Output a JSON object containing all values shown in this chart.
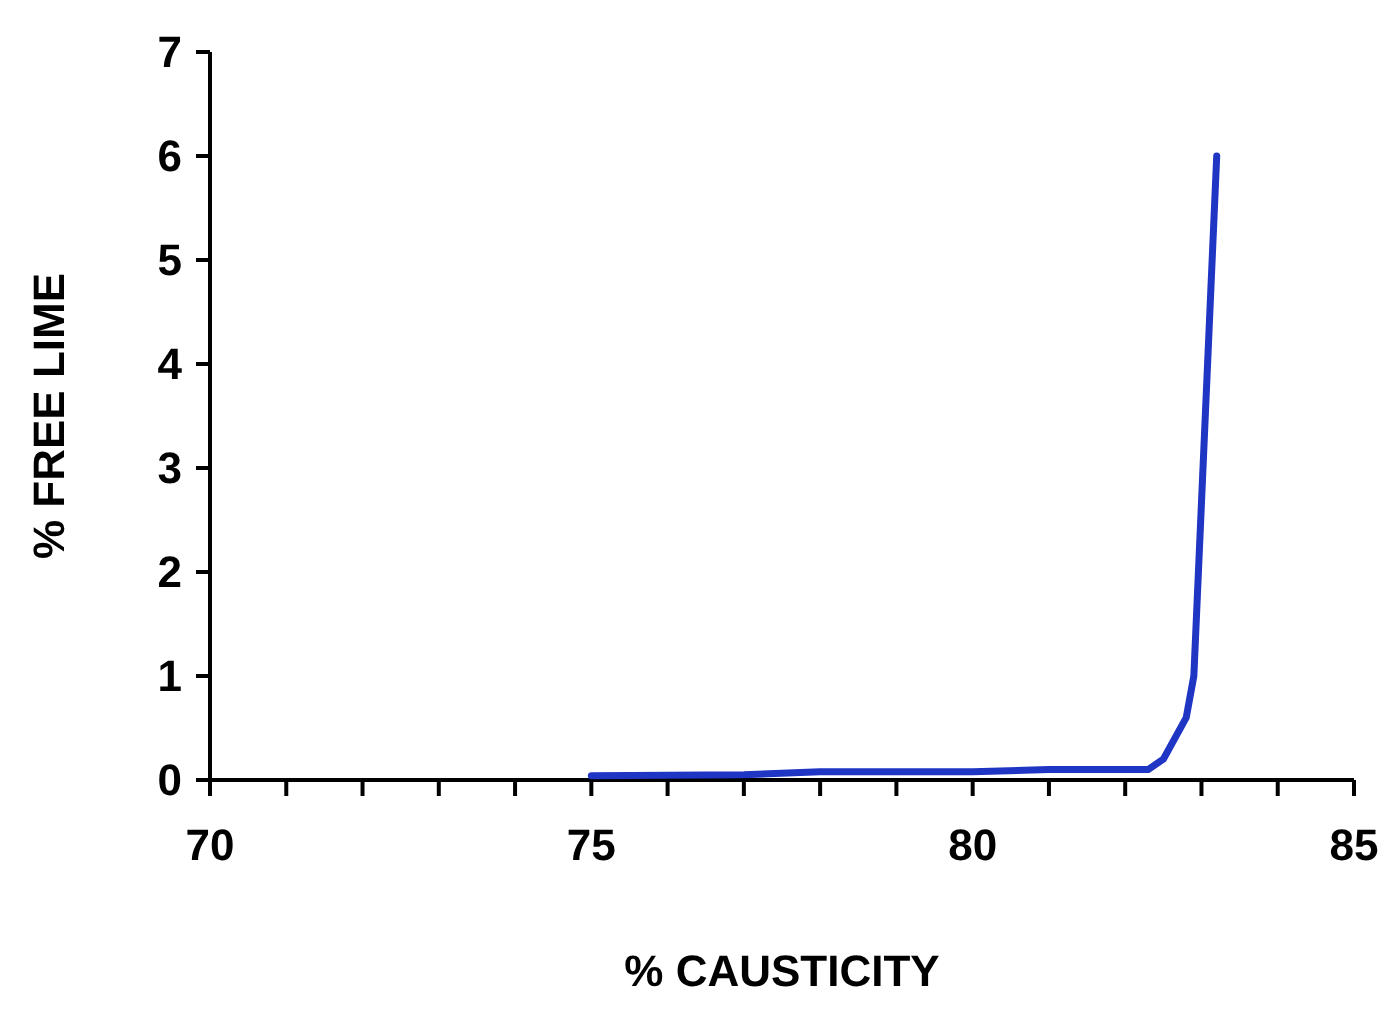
{
  "chart_data": {
    "type": "line",
    "xlabel": "% CAUSTICITY",
    "ylabel": "% FREE LIME",
    "x": [
      75,
      77,
      78,
      80,
      81,
      82.3,
      82.5,
      82.8,
      82.9,
      83.2
    ],
    "series": [
      {
        "color": "#1f35c4",
        "values": [
          0.04,
          0.05,
          0.08,
          0.08,
          0.1,
          0.1,
          0.2,
          0.6,
          1,
          6
        ]
      }
    ],
    "xlim": [
      70,
      85
    ],
    "xticks": [
      70,
      {
        "value": 71,
        "label": null
      },
      {
        "value": 72,
        "label": null
      },
      {
        "value": 73,
        "label": null
      },
      {
        "value": 74,
        "label": null
      },
      75,
      {
        "value": 76,
        "label": null
      },
      {
        "value": 77,
        "label": null
      },
      {
        "value": 78,
        "label": null
      },
      {
        "value": 79,
        "label": null
      },
      80,
      {
        "value": 81,
        "label": null
      },
      {
        "value": 82,
        "label": null
      },
      {
        "value": 83,
        "label": null
      },
      {
        "value": 84,
        "label": null
      },
      85
    ],
    "ylim": [
      0,
      7
    ],
    "yticks": [
      0,
      1,
      2,
      3,
      4,
      5,
      6,
      7
    ],
    "grid": false,
    "marker": "none",
    "line_style": "solid"
  }
}
